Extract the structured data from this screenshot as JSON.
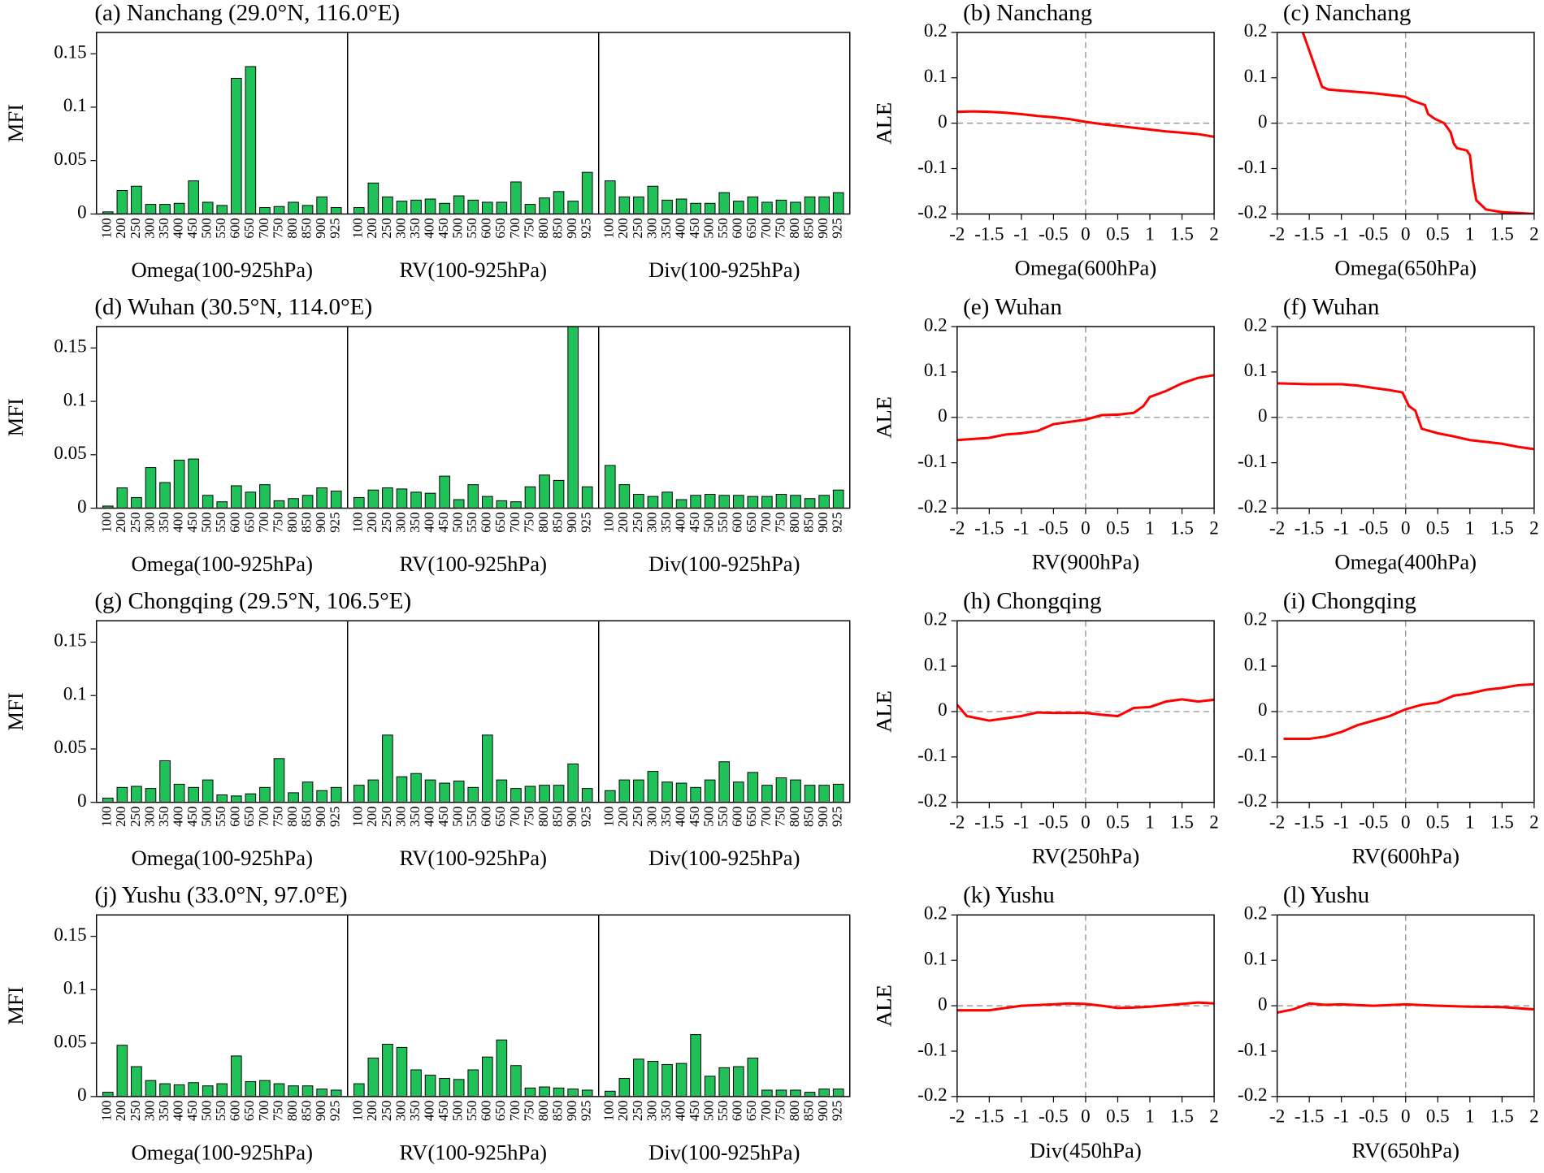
{
  "chart_data": [
    {
      "type": "bar",
      "title": "(a) Nanchang (29.0°N, 116.0°E)",
      "ylabel": "MFI",
      "color": "#21c15a",
      "categories": [
        "100",
        "200",
        "250",
        "300",
        "350",
        "400",
        "450",
        "500",
        "550",
        "600",
        "650",
        "700",
        "750",
        "800",
        "850",
        "900",
        "925"
      ],
      "ylim": [
        0,
        0.17
      ],
      "yticks": [
        0,
        0.05,
        0.1,
        0.15
      ],
      "series": [
        {
          "name": "Omega(100-925hPa)",
          "values": [
            0.002,
            0.022,
            0.026,
            0.009,
            0.009,
            0.01,
            0.031,
            0.011,
            0.008,
            0.127,
            0.138,
            0.006,
            0.007,
            0.011,
            0.008,
            0.016,
            0.006
          ]
        },
        {
          "name": "RV(100-925hPa)",
          "values": [
            0.006,
            0.029,
            0.016,
            0.012,
            0.013,
            0.014,
            0.01,
            0.017,
            0.013,
            0.011,
            0.011,
            0.03,
            0.009,
            0.015,
            0.021,
            0.012,
            0.039
          ]
        },
        {
          "name": "Div(100-925hPa)",
          "values": [
            0.031,
            0.016,
            0.016,
            0.026,
            0.013,
            0.014,
            0.01,
            0.01,
            0.02,
            0.012,
            0.016,
            0.011,
            0.013,
            0.011,
            0.016,
            0.016,
            0.02
          ]
        }
      ]
    },
    {
      "type": "line",
      "title": "(b) Nanchang",
      "xlabel": "Omega(600hPa)",
      "ylabel": "ALE",
      "color": "#ff0000",
      "x": [
        -2,
        -1.75,
        -1.5,
        -1.25,
        -1,
        -0.75,
        -0.5,
        -0.25,
        0,
        0.25,
        0.5,
        0.75,
        1,
        1.25,
        1.5,
        1.75,
        2
      ],
      "values": [
        0.025,
        0.026,
        0.025,
        0.023,
        0.02,
        0.016,
        0.013,
        0.009,
        0.003,
        -0.002,
        -0.006,
        -0.01,
        -0.014,
        -0.018,
        -0.021,
        -0.024,
        -0.03
      ],
      "xlim": [
        -2,
        2
      ],
      "xticks": [
        -2,
        -1.5,
        -1,
        -0.5,
        0,
        0.5,
        1,
        1.5,
        2
      ],
      "ylim": [
        -0.2,
        0.2
      ],
      "yticks": [
        -0.2,
        -0.1,
        0,
        0.1,
        0.2
      ]
    },
    {
      "type": "line",
      "title": "(c) Nanchang",
      "xlabel": "Omega(650hPa)",
      "ylabel": "ALE",
      "color": "#ff0000",
      "x": [
        -1.6,
        -1.3,
        -1.2,
        -0.5,
        0,
        0.1,
        0.2,
        0.3,
        0.35,
        0.45,
        0.6,
        0.7,
        0.75,
        0.8,
        0.95,
        1.0,
        1.05,
        1.1,
        1.25,
        1.5,
        2
      ],
      "values": [
        0.2,
        0.08,
        0.074,
        0.066,
        0.058,
        0.05,
        0.045,
        0.04,
        0.02,
        0.01,
        0,
        -0.02,
        -0.045,
        -0.055,
        -0.06,
        -0.07,
        -0.13,
        -0.17,
        -0.19,
        -0.196,
        -0.2
      ],
      "xlim": [
        -2,
        2
      ],
      "xticks": [
        -2,
        -1.5,
        -1,
        -0.5,
        0,
        0.5,
        1,
        1.5,
        2
      ],
      "ylim": [
        -0.2,
        0.2
      ],
      "yticks": [
        -0.2,
        -0.1,
        0,
        0.1,
        0.2
      ]
    },
    {
      "type": "bar",
      "title": "(d) Wuhan (30.5°N, 114.0°E)",
      "ylabel": "MFI",
      "color": "#21c15a",
      "categories": [
        "100",
        "200",
        "250",
        "300",
        "350",
        "400",
        "450",
        "500",
        "550",
        "600",
        "650",
        "700",
        "750",
        "800",
        "850",
        "900",
        "925"
      ],
      "ylim": [
        0,
        0.17
      ],
      "yticks": [
        0,
        0.05,
        0.1,
        0.15
      ],
      "series": [
        {
          "name": "Omega(100-925hPa)",
          "values": [
            0.002,
            0.019,
            0.01,
            0.038,
            0.024,
            0.045,
            0.046,
            0.012,
            0.006,
            0.021,
            0.015,
            0.022,
            0.007,
            0.009,
            0.012,
            0.019,
            0.016
          ]
        },
        {
          "name": "RV(100-925hPa)",
          "values": [
            0.01,
            0.017,
            0.019,
            0.018,
            0.015,
            0.014,
            0.03,
            0.008,
            0.022,
            0.011,
            0.007,
            0.006,
            0.02,
            0.031,
            0.026,
            0.17,
            0.02
          ]
        },
        {
          "name": "Div(100-925hPa)",
          "values": [
            0.04,
            0.022,
            0.013,
            0.011,
            0.015,
            0.008,
            0.012,
            0.013,
            0.012,
            0.012,
            0.011,
            0.011,
            0.013,
            0.012,
            0.009,
            0.012,
            0.017
          ]
        }
      ]
    },
    {
      "type": "line",
      "title": "(e) Wuhan",
      "xlabel": "RV(900hPa)",
      "ylabel": "ALE",
      "color": "#ff0000",
      "x": [
        -2,
        -1.5,
        -1.25,
        -1,
        -0.75,
        -0.5,
        -0.25,
        0,
        0.25,
        0.5,
        0.75,
        0.9,
        1,
        1.25,
        1.5,
        1.75,
        2
      ],
      "values": [
        -0.05,
        -0.045,
        -0.038,
        -0.035,
        -0.03,
        -0.015,
        -0.01,
        -0.005,
        0.005,
        0.006,
        0.01,
        0.025,
        0.045,
        0.058,
        0.075,
        0.087,
        0.093
      ],
      "xlim": [
        -2,
        2
      ],
      "xticks": [
        -2,
        -1.5,
        -1,
        -0.5,
        0,
        0.5,
        1,
        1.5,
        2
      ],
      "ylim": [
        -0.2,
        0.2
      ],
      "yticks": [
        -0.2,
        -0.1,
        0,
        0.1,
        0.2
      ]
    },
    {
      "type": "line",
      "title": "(f) Wuhan",
      "xlabel": "Omega(400hPa)",
      "ylabel": "ALE",
      "color": "#ff0000",
      "x": [
        -2,
        -1.5,
        -1,
        -0.75,
        -0.5,
        -0.25,
        -0.05,
        0,
        0.05,
        0.15,
        0.25,
        0.5,
        0.75,
        1,
        1.5,
        1.75,
        2
      ],
      "values": [
        0.075,
        0.073,
        0.073,
        0.07,
        0.065,
        0.06,
        0.055,
        0.04,
        0.025,
        0.015,
        -0.025,
        -0.035,
        -0.042,
        -0.05,
        -0.058,
        -0.065,
        -0.07
      ],
      "xlim": [
        -2,
        2
      ],
      "xticks": [
        -2,
        -1.5,
        -1,
        -0.5,
        0,
        0.5,
        1,
        1.5,
        2
      ],
      "ylim": [
        -0.2,
        0.2
      ],
      "yticks": [
        -0.2,
        -0.1,
        0,
        0.1,
        0.2
      ]
    },
    {
      "type": "bar",
      "title": "(g) Chongqing (29.5°N, 106.5°E)",
      "ylabel": "MFI",
      "color": "#21c15a",
      "categories": [
        "100",
        "200",
        "250",
        "300",
        "350",
        "400",
        "450",
        "500",
        "550",
        "600",
        "650",
        "700",
        "750",
        "800",
        "850",
        "900",
        "925"
      ],
      "ylim": [
        0,
        0.17
      ],
      "yticks": [
        0,
        0.05,
        0.1,
        0.15
      ],
      "series": [
        {
          "name": "Omega(100-925hPa)",
          "values": [
            0.004,
            0.014,
            0.015,
            0.013,
            0.039,
            0.017,
            0.014,
            0.021,
            0.007,
            0.006,
            0.008,
            0.014,
            0.041,
            0.009,
            0.019,
            0.011,
            0.014
          ]
        },
        {
          "name": "RV(100-925hPa)",
          "values": [
            0.016,
            0.021,
            0.063,
            0.024,
            0.027,
            0.021,
            0.018,
            0.02,
            0.014,
            0.063,
            0.021,
            0.013,
            0.015,
            0.016,
            0.016,
            0.036,
            0.013
          ]
        },
        {
          "name": "Div(100-925hPa)",
          "values": [
            0.011,
            0.021,
            0.021,
            0.029,
            0.019,
            0.018,
            0.014,
            0.021,
            0.038,
            0.019,
            0.028,
            0.016,
            0.023,
            0.021,
            0.016,
            0.016,
            0.017
          ]
        }
      ]
    },
    {
      "type": "line",
      "title": "(h) Chongqing",
      "xlabel": "RV(250hPa)",
      "ylabel": "ALE",
      "color": "#ff0000",
      "x": [
        -2,
        -1.85,
        -1.5,
        -1.25,
        -1,
        -0.75,
        -0.5,
        0,
        0.25,
        0.5,
        0.75,
        1,
        1.25,
        1.5,
        1.75,
        2
      ],
      "values": [
        0.015,
        -0.01,
        -0.02,
        -0.015,
        -0.01,
        -0.002,
        -0.003,
        -0.003,
        -0.007,
        -0.01,
        0.008,
        0.01,
        0.022,
        0.027,
        0.022,
        0.026
      ],
      "xlim": [
        -2,
        2
      ],
      "xticks": [
        -2,
        -1.5,
        -1,
        -0.5,
        0,
        0.5,
        1,
        1.5,
        2
      ],
      "ylim": [
        -0.2,
        0.2
      ],
      "yticks": [
        -0.2,
        -0.1,
        0,
        0.1,
        0.2
      ]
    },
    {
      "type": "line",
      "title": "(i) Chongqing",
      "xlabel": "RV(600hPa)",
      "ylabel": "ALE",
      "color": "#ff0000",
      "x": [
        -1.9,
        -1.5,
        -1.25,
        -1,
        -0.75,
        -0.5,
        -0.25,
        0,
        0.25,
        0.5,
        0.75,
        1,
        1.25,
        1.5,
        1.75,
        2
      ],
      "values": [
        -0.06,
        -0.06,
        -0.055,
        -0.045,
        -0.03,
        -0.02,
        -0.01,
        0.005,
        0.015,
        0.02,
        0.035,
        0.04,
        0.048,
        0.052,
        0.058,
        0.06
      ],
      "xlim": [
        -2,
        2
      ],
      "xticks": [
        -2,
        -1.5,
        -1,
        -0.5,
        0,
        0.5,
        1,
        1.5,
        2
      ],
      "ylim": [
        -0.2,
        0.2
      ],
      "yticks": [
        -0.2,
        -0.1,
        0,
        0.1,
        0.2
      ]
    },
    {
      "type": "bar",
      "title": "(j) Yushu (33.0°N, 97.0°E)",
      "ylabel": "MFI",
      "color": "#21c15a",
      "categories": [
        "100",
        "200",
        "250",
        "300",
        "350",
        "400",
        "450",
        "500",
        "550",
        "600",
        "650",
        "700",
        "750",
        "800",
        "850",
        "900",
        "925"
      ],
      "ylim": [
        0,
        0.17
      ],
      "yticks": [
        0,
        0.05,
        0.1,
        0.15
      ],
      "series": [
        {
          "name": "Omega(100-925hPa)",
          "values": [
            0.004,
            0.048,
            0.028,
            0.015,
            0.012,
            0.011,
            0.013,
            0.01,
            0.012,
            0.038,
            0.014,
            0.015,
            0.012,
            0.01,
            0.01,
            0.007,
            0.006
          ]
        },
        {
          "name": "RV(100-925hPa)",
          "values": [
            0.012,
            0.036,
            0.049,
            0.046,
            0.025,
            0.02,
            0.017,
            0.016,
            0.025,
            0.037,
            0.053,
            0.029,
            0.008,
            0.009,
            0.008,
            0.007,
            0.006
          ]
        },
        {
          "name": "Div(100-925hPa)",
          "values": [
            0.005,
            0.017,
            0.035,
            0.033,
            0.03,
            0.031,
            0.058,
            0.019,
            0.027,
            0.028,
            0.036,
            0.006,
            0.006,
            0.006,
            0.004,
            0.007,
            0.007
          ]
        }
      ]
    },
    {
      "type": "line",
      "title": "(k) Yushu",
      "xlabel": "Div(450hPa)",
      "ylabel": "ALE",
      "color": "#ff0000",
      "x": [
        -2,
        -1.5,
        -1.25,
        -1,
        -0.5,
        -0.25,
        0,
        0.25,
        0.5,
        0.75,
        1,
        1.5,
        1.75,
        2
      ],
      "values": [
        -0.01,
        -0.01,
        -0.005,
        0,
        0.003,
        0.005,
        0.004,
        0,
        -0.005,
        -0.004,
        -0.002,
        0.004,
        0.007,
        0.005
      ],
      "xlim": [
        -2,
        2
      ],
      "xticks": [
        -2,
        -1.5,
        -1,
        -0.5,
        0,
        0.5,
        1,
        1.5,
        2
      ],
      "ylim": [
        -0.2,
        0.2
      ],
      "yticks": [
        -0.2,
        -0.1,
        0,
        0.1,
        0.2
      ]
    },
    {
      "type": "line",
      "title": "(l) Yushu",
      "xlabel": "RV(650hPa)",
      "ylabel": "ALE",
      "color": "#ff0000",
      "x": [
        -2,
        -1.75,
        -1.5,
        -1.25,
        -1,
        -0.5,
        0,
        0.5,
        1,
        1.5,
        2
      ],
      "values": [
        -0.015,
        -0.008,
        0.005,
        0.002,
        0.003,
        0,
        0.003,
        0,
        -0.002,
        -0.003,
        -0.008
      ],
      "xlim": [
        -2,
        2
      ],
      "xticks": [
        -2,
        -1.5,
        -1,
        -0.5,
        0,
        0.5,
        1,
        1.5,
        2
      ],
      "ylim": [
        -0.2,
        0.2
      ],
      "yticks": [
        -0.2,
        -0.1,
        0,
        0.1,
        0.2
      ]
    }
  ]
}
